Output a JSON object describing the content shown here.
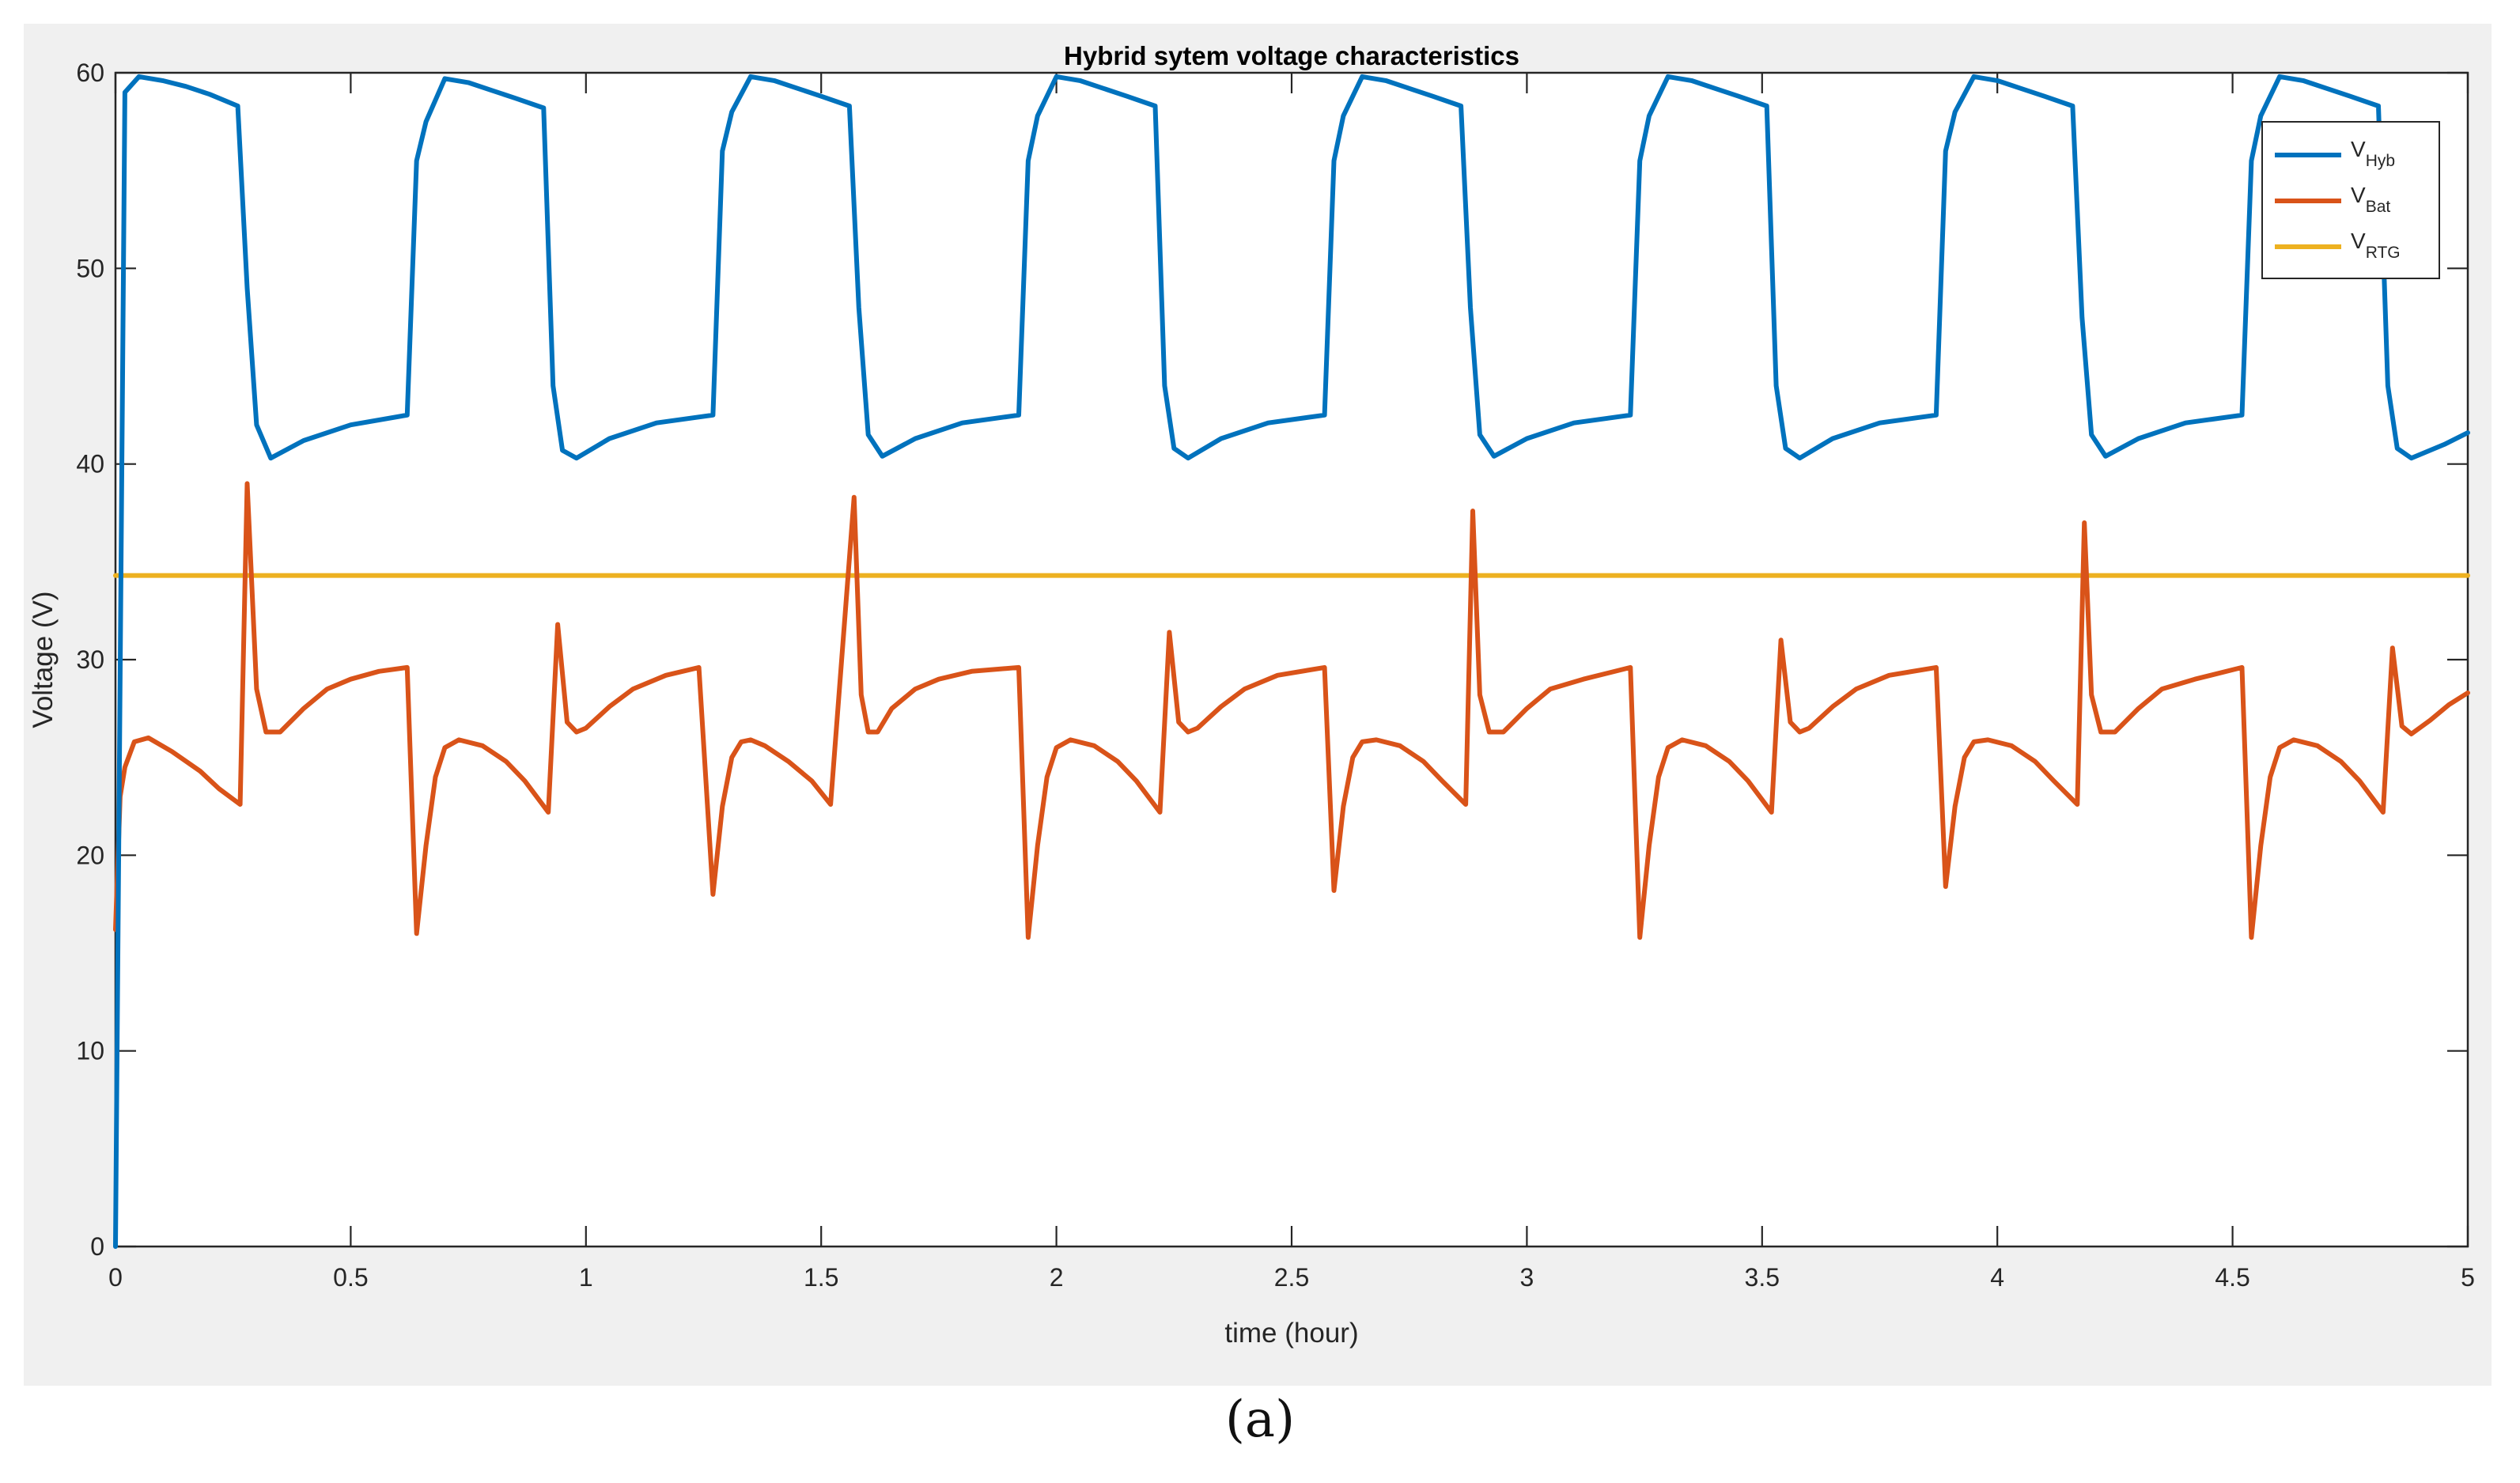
{
  "chart_data": {
    "type": "line",
    "title": "Hybrid sytem voltage characteristics",
    "xlabel": "time (hour)",
    "ylabel": "Voltage (V)",
    "xlim": [
      0,
      5
    ],
    "ylim": [
      0,
      60
    ],
    "xticks": [
      0,
      0.5,
      1,
      1.5,
      2,
      2.5,
      3,
      3.5,
      4,
      4.5,
      5
    ],
    "xtick_labels": [
      "0",
      "0.5",
      "1",
      "1.5",
      "2",
      "2.5",
      "3",
      "3.5",
      "4",
      "4.5",
      "5"
    ],
    "yticks": [
      0,
      10,
      20,
      30,
      40,
      50,
      60
    ],
    "ytick_labels": [
      "0",
      "10",
      "20",
      "30",
      "40",
      "50",
      "60"
    ],
    "grid": false,
    "legend_position": "top-right",
    "series": [
      {
        "name": "V_Hyb",
        "label_main": "V",
        "label_sub": "Hyb",
        "color": "#0072bd",
        "x": [
          0,
          0.02,
          0.05,
          0.1,
          0.15,
          0.2,
          0.26,
          0.28,
          0.3,
          0.33,
          0.4,
          0.5,
          0.62,
          0.64,
          0.66,
          0.7,
          0.75,
          0.8,
          0.85,
          0.91,
          0.93,
          0.95,
          0.98,
          1.05,
          1.15,
          1.27,
          1.29,
          1.31,
          1.35,
          1.4,
          1.45,
          1.5,
          1.56,
          1.58,
          1.6,
          1.63,
          1.7,
          1.8,
          1.92,
          1.94,
          1.96,
          2.0,
          2.05,
          2.1,
          2.15,
          2.21,
          2.23,
          2.25,
          2.28,
          2.35,
          2.45,
          2.57,
          2.59,
          2.61,
          2.65,
          2.7,
          2.75,
          2.8,
          2.86,
          2.88,
          2.9,
          2.93,
          3.0,
          3.1,
          3.22,
          3.24,
          3.26,
          3.3,
          3.35,
          3.4,
          3.45,
          3.51,
          3.53,
          3.55,
          3.58,
          3.65,
          3.75,
          3.87,
          3.89,
          3.91,
          3.95,
          4.0,
          4.05,
          4.1,
          4.16,
          4.18,
          4.2,
          4.23,
          4.3,
          4.4,
          4.52,
          4.54,
          4.56,
          4.6,
          4.65,
          4.7,
          4.75,
          4.81,
          4.83,
          4.85,
          4.88,
          4.95,
          5.0
        ],
        "values": [
          0,
          59,
          59.8,
          59.6,
          59.3,
          58.9,
          58.3,
          49,
          42,
          40.3,
          41.2,
          42,
          42.5,
          55.5,
          57.5,
          59.7,
          59.5,
          59.1,
          58.7,
          58.2,
          44,
          40.7,
          40.3,
          41.3,
          42.1,
          42.5,
          56,
          58,
          59.8,
          59.6,
          59.2,
          58.8,
          58.3,
          48,
          41.5,
          40.4,
          41.3,
          42.1,
          42.5,
          55.5,
          57.8,
          59.8,
          59.6,
          59.2,
          58.8,
          58.3,
          44,
          40.8,
          40.3,
          41.3,
          42.1,
          42.5,
          55.5,
          57.8,
          59.8,
          59.6,
          59.2,
          58.8,
          58.3,
          48,
          41.5,
          40.4,
          41.3,
          42.1,
          42.5,
          55.5,
          57.8,
          59.8,
          59.6,
          59.2,
          58.8,
          58.3,
          44,
          40.8,
          40.3,
          41.3,
          42.1,
          42.5,
          56,
          58,
          59.8,
          59.6,
          59.2,
          58.8,
          58.3,
          47.5,
          41.5,
          40.4,
          41.3,
          42.1,
          42.5,
          55.5,
          57.8,
          59.8,
          59.6,
          59.2,
          58.8,
          58.3,
          44,
          40.8,
          40.3,
          41.0,
          41.6
        ]
      },
      {
        "name": "V_Bat",
        "label_main": "V",
        "label_sub": "Bat",
        "color": "#d95319",
        "x": [
          0,
          0.01,
          0.02,
          0.04,
          0.07,
          0.12,
          0.18,
          0.22,
          0.265,
          0.28,
          0.3,
          0.32,
          0.35,
          0.4,
          0.45,
          0.5,
          0.56,
          0.62,
          0.64,
          0.66,
          0.68,
          0.7,
          0.73,
          0.78,
          0.83,
          0.87,
          0.92,
          0.94,
          0.96,
          0.98,
          1.0,
          1.05,
          1.1,
          1.17,
          1.24,
          1.27,
          1.29,
          1.31,
          1.33,
          1.35,
          1.38,
          1.43,
          1.48,
          1.52,
          1.57,
          1.585,
          1.6,
          1.62,
          1.65,
          1.7,
          1.75,
          1.82,
          1.92,
          1.94,
          1.96,
          1.98,
          2.0,
          2.03,
          2.08,
          2.13,
          2.17,
          2.22,
          2.24,
          2.26,
          2.28,
          2.3,
          2.35,
          2.4,
          2.47,
          2.57,
          2.59,
          2.61,
          2.63,
          2.65,
          2.68,
          2.73,
          2.78,
          2.82,
          2.87,
          2.885,
          2.9,
          2.92,
          2.95,
          3.0,
          3.05,
          3.12,
          3.22,
          3.24,
          3.26,
          3.28,
          3.3,
          3.33,
          3.38,
          3.43,
          3.47,
          3.52,
          3.54,
          3.56,
          3.58,
          3.6,
          3.65,
          3.7,
          3.77,
          3.87,
          3.89,
          3.91,
          3.93,
          3.95,
          3.98,
          4.03,
          4.08,
          4.12,
          4.17,
          4.185,
          4.2,
          4.22,
          4.25,
          4.3,
          4.35,
          4.42,
          4.52,
          4.54,
          4.56,
          4.58,
          4.6,
          4.63,
          4.68,
          4.73,
          4.77,
          4.82,
          4.84,
          4.86,
          4.88,
          4.92,
          4.96,
          5.0
        ],
        "values": [
          16.2,
          23,
          24.5,
          25.8,
          26.0,
          25.3,
          24.3,
          23.4,
          22.6,
          39,
          28.5,
          26.3,
          26.3,
          27.5,
          28.5,
          29.0,
          29.4,
          29.6,
          16.0,
          20.5,
          24,
          25.5,
          25.9,
          25.6,
          24.8,
          23.8,
          22.2,
          31.8,
          26.8,
          26.3,
          26.5,
          27.6,
          28.5,
          29.2,
          29.6,
          18.0,
          22.5,
          25,
          25.8,
          25.9,
          25.6,
          24.8,
          23.8,
          22.6,
          38.3,
          28.2,
          26.3,
          26.3,
          27.5,
          28.5,
          29.0,
          29.4,
          29.6,
          15.8,
          20.5,
          24,
          25.5,
          25.9,
          25.6,
          24.8,
          23.8,
          22.2,
          31.4,
          26.8,
          26.3,
          26.5,
          27.6,
          28.5,
          29.2,
          29.6,
          18.2,
          22.5,
          25,
          25.8,
          25.9,
          25.6,
          24.8,
          23.8,
          22.6,
          37.6,
          28.2,
          26.3,
          26.3,
          27.5,
          28.5,
          29.0,
          29.6,
          15.8,
          20.5,
          24,
          25.5,
          25.9,
          25.6,
          24.8,
          23.8,
          22.2,
          31.0,
          26.8,
          26.3,
          26.5,
          27.6,
          28.5,
          29.2,
          29.6,
          18.4,
          22.5,
          25,
          25.8,
          25.9,
          25.6,
          24.8,
          23.8,
          22.6,
          37.0,
          28.2,
          26.3,
          26.3,
          27.5,
          28.5,
          29.0,
          29.6,
          15.8,
          20.5,
          24,
          25.5,
          25.9,
          25.6,
          24.8,
          23.8,
          22.2,
          30.6,
          26.6,
          26.2,
          26.9,
          27.7,
          28.3
        ]
      },
      {
        "name": "V_RTG",
        "label_main": "V",
        "label_sub": "RTG",
        "color": "#edb120",
        "x": [
          0,
          5
        ],
        "values": [
          34.3,
          34.3
        ]
      }
    ]
  },
  "caption": "(a)"
}
